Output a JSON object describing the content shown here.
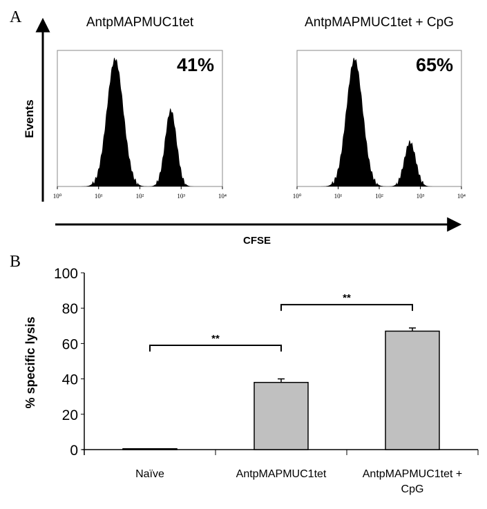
{
  "chart_data": [
    {
      "type": "histogram",
      "panel_label": "A",
      "x_axis_label": "CFSE",
      "y_axis_label": "Events",
      "x_scale": "log",
      "x_tick_labels": [
        "10⁰",
        "10¹",
        "10²",
        "10³",
        "10⁴"
      ],
      "xlim_log10": [
        0,
        4
      ],
      "panels": [
        {
          "title": "AntpMAPMUC1tet",
          "percent_label": "41%",
          "peaks": [
            {
              "center_log10": 1.4,
              "relative_height": 1.0,
              "width_log10": 0.2
            },
            {
              "center_log10": 2.75,
              "relative_height": 0.6,
              "width_log10": 0.14
            }
          ]
        },
        {
          "title": "AntpMAPMUC1tet + CpG",
          "percent_label": "65%",
          "peaks": [
            {
              "center_log10": 1.4,
              "relative_height": 1.0,
              "width_log10": 0.2
            },
            {
              "center_log10": 2.75,
              "relative_height": 0.35,
              "width_log10": 0.14
            }
          ]
        }
      ]
    },
    {
      "type": "bar",
      "panel_label": "B",
      "title": "",
      "xlabel": "",
      "ylabel": "% specific lysis",
      "ylim": [
        0,
        100
      ],
      "y_ticks": [
        "0",
        "20",
        "40",
        "60",
        "80",
        "100"
      ],
      "categories": [
        "Naïve",
        "AntpMAPMUC1tet",
        "AntpMAPMUC1tet + CpG"
      ],
      "category_lines": [
        [
          "Naïve"
        ],
        [
          "AntpMAPMUC1tet"
        ],
        [
          "AntpMAPMUC1tet +",
          "CpG"
        ]
      ],
      "values": [
        0.5,
        38,
        67
      ],
      "errors": [
        0,
        2,
        1.8
      ],
      "bar_color": "#c0c0c0",
      "significance": [
        {
          "from": 0,
          "to": 1,
          "label": "**",
          "level": 59
        },
        {
          "from": 1,
          "to": 2,
          "label": "**",
          "level": 82
        }
      ]
    }
  ]
}
